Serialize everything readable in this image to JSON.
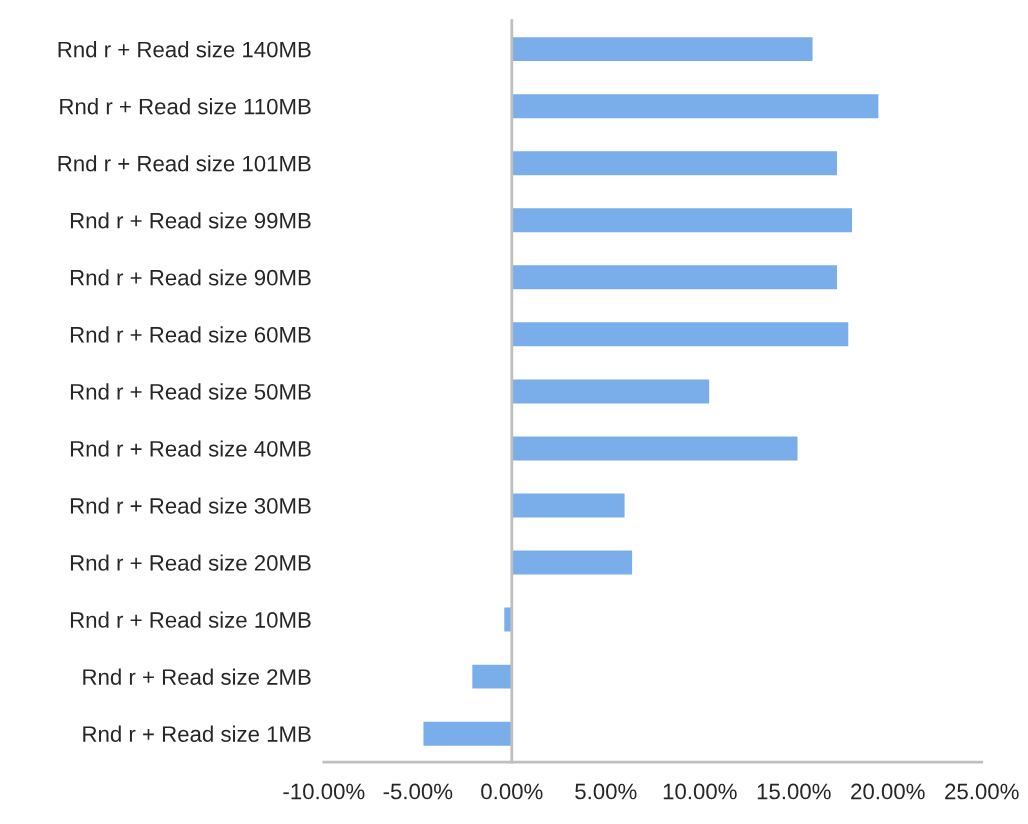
{
  "chart_data": {
    "type": "bar",
    "orientation": "horizontal",
    "categories": [
      "Rnd r + Read size 140MB",
      "Rnd r + Read size 110MB",
      "Rnd r + Read size 101MB",
      "Rnd r + Read size 99MB",
      "Rnd r + Read size 90MB",
      "Rnd r + Read size 60MB",
      "Rnd r + Read size 50MB",
      "Rnd r + Read size 40MB",
      "Rnd r + Read size 30MB",
      "Rnd r + Read size 20MB",
      "Rnd r + Read size 10MB",
      "Rnd r + Read size 2MB",
      "Rnd r + Read size 1MB"
    ],
    "values": [
      16.0,
      19.5,
      17.3,
      18.1,
      17.3,
      17.9,
      10.5,
      15.2,
      6.0,
      6.4,
      -0.4,
      -2.1,
      -4.7
    ],
    "color": "#7aaeea",
    "xlim": [
      -10,
      25
    ],
    "xticks": [
      {
        "value": -10,
        "label": "-10.00%"
      },
      {
        "value": -5,
        "label": "-5.00%"
      },
      {
        "value": 0,
        "label": "0.00%"
      },
      {
        "value": 5,
        "label": "5.00%"
      },
      {
        "value": 10,
        "label": "10.00%"
      },
      {
        "value": 15,
        "label": "15.00%"
      },
      {
        "value": 20,
        "label": "20.00%"
      },
      {
        "value": 25,
        "label": "25.00%"
      }
    ]
  }
}
